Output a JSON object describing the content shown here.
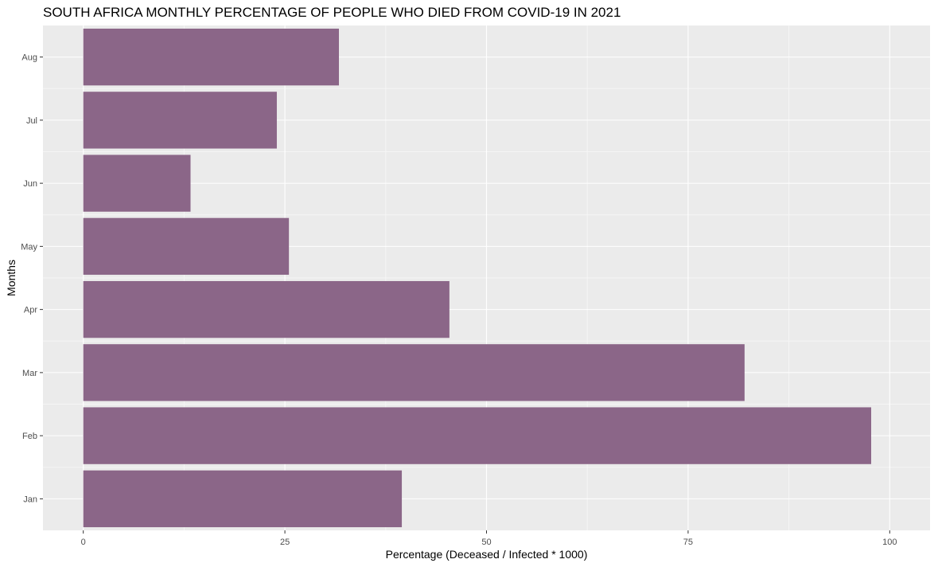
{
  "chart_data": {
    "type": "bar",
    "orientation": "horizontal",
    "title": "SOUTH AFRICA MONTHLY PERCENTAGE OF PEOPLE WHO DIED FROM COVID-19 IN 2021",
    "xlabel": "Percentage (Deceased / Infected * 1000)",
    "ylabel": "Months",
    "categories": [
      "Jan",
      "Feb",
      "Mar",
      "Apr",
      "May",
      "Jun",
      "Jul",
      "Aug"
    ],
    "values": [
      39.5,
      97.7,
      82.0,
      45.4,
      25.5,
      13.3,
      24.0,
      31.7
    ],
    "xlim": [
      -5,
      105
    ],
    "xticks": [
      0,
      25,
      50,
      75,
      100
    ],
    "grid": true,
    "legend": "none",
    "colors": {
      "bar": "#8b6688",
      "panel": "#ebebeb",
      "grid_major": "#ffffff",
      "grid_minor": "#f5f5f5"
    }
  }
}
